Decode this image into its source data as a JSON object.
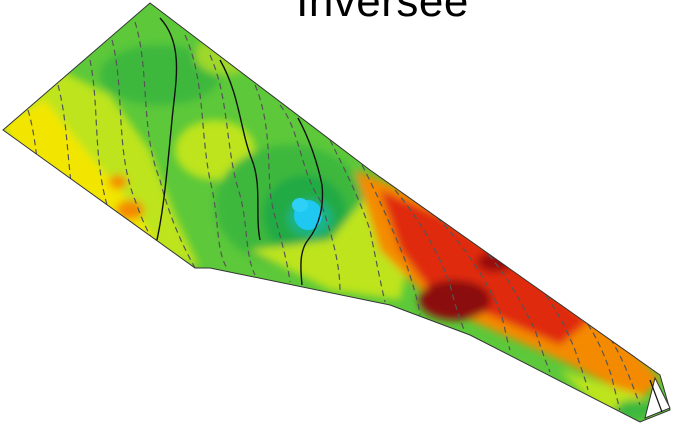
{
  "title": "Inversee",
  "palette": {
    "background": "#ffffff",
    "blue": "#1ec8f0",
    "dark_green": "#22aa44",
    "green": "#3cb83c",
    "light_green": "#72d23a",
    "yellow_green": "#bde41e",
    "yellow": "#f2e600",
    "orange": "#f48a00",
    "red": "#e02c0c",
    "dark_red": "#8c0a0a",
    "contour_dashed": "#555555",
    "contour_solid": "#111111",
    "outline": "#333333"
  }
}
